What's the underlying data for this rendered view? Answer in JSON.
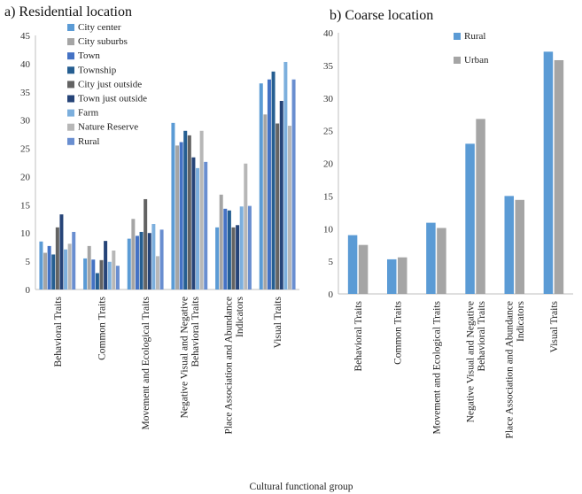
{
  "figure": {
    "xlabel": "Cultural functional group"
  },
  "chart_data": [
    {
      "type": "bar",
      "title": "a) Residential location",
      "xlabel": "",
      "ylabel": "",
      "ylim": [
        0,
        45
      ],
      "yticks": [
        0,
        5,
        10,
        15,
        20,
        25,
        30,
        35,
        40,
        45
      ],
      "grid": false,
      "legend": "top-left",
      "categories": [
        "Behavioral Traits",
        "Common Traits",
        "Movement and Ecological Traits",
        "Negative Visual and Negative Behavioral Traits",
        "Place Association and Abundance Indicators",
        "Visual Traits"
      ],
      "series": [
        {
          "name": "City center",
          "color": "#5b9bd5",
          "values": [
            8.5,
            5.5,
            9.0,
            29.5,
            11.0,
            36.5
          ]
        },
        {
          "name": "City suburbs",
          "color": "#a5a5a5",
          "values": [
            6.5,
            7.7,
            12.5,
            25.5,
            16.8,
            31.0
          ]
        },
        {
          "name": "Town",
          "color": "#4472c4",
          "values": [
            7.7,
            5.3,
            9.5,
            26.1,
            14.3,
            37.2
          ]
        },
        {
          "name": "Township",
          "color": "#255e91",
          "values": [
            6.2,
            2.9,
            10.2,
            28.1,
            14.0,
            38.6
          ]
        },
        {
          "name": "City just outside",
          "color": "#636363",
          "values": [
            11.0,
            5.2,
            16.0,
            27.3,
            11.0,
            29.4
          ]
        },
        {
          "name": "Town just outside",
          "color": "#264478",
          "values": [
            13.3,
            8.6,
            10.0,
            23.4,
            11.4,
            33.4
          ]
        },
        {
          "name": "Farm",
          "color": "#7cafdd",
          "values": [
            7.1,
            4.9,
            11.6,
            21.5,
            14.7,
            40.3
          ]
        },
        {
          "name": "Nature Reserve",
          "color": "#b7b7b7",
          "values": [
            8.1,
            6.9,
            5.9,
            28.1,
            22.3,
            29.0
          ]
        },
        {
          "name": "Rural",
          "color": "#698ed0",
          "values": [
            10.2,
            4.2,
            10.6,
            22.6,
            14.8,
            37.2
          ]
        }
      ]
    },
    {
      "type": "bar",
      "title": "b) Coarse location",
      "xlabel": "",
      "ylabel": "",
      "ylim": [
        0,
        40
      ],
      "yticks": [
        0,
        5,
        10,
        15,
        20,
        25,
        30,
        35,
        40
      ],
      "grid": false,
      "legend": "top-left",
      "categories": [
        "Behavioral Traits",
        "Common Traits",
        "Movement and Ecological Traits",
        "Negative Visual and Negative Behavioral Traits",
        "Place Association and Abundance Indicators",
        "Visual Traits"
      ],
      "series": [
        {
          "name": "Rural",
          "color": "#5b9bd5",
          "values": [
            9.0,
            5.3,
            10.9,
            23.0,
            15.0,
            37.1
          ]
        },
        {
          "name": "Urban",
          "color": "#a5a5a5",
          "values": [
            7.5,
            5.6,
            10.1,
            26.8,
            14.4,
            35.8
          ]
        }
      ]
    }
  ]
}
